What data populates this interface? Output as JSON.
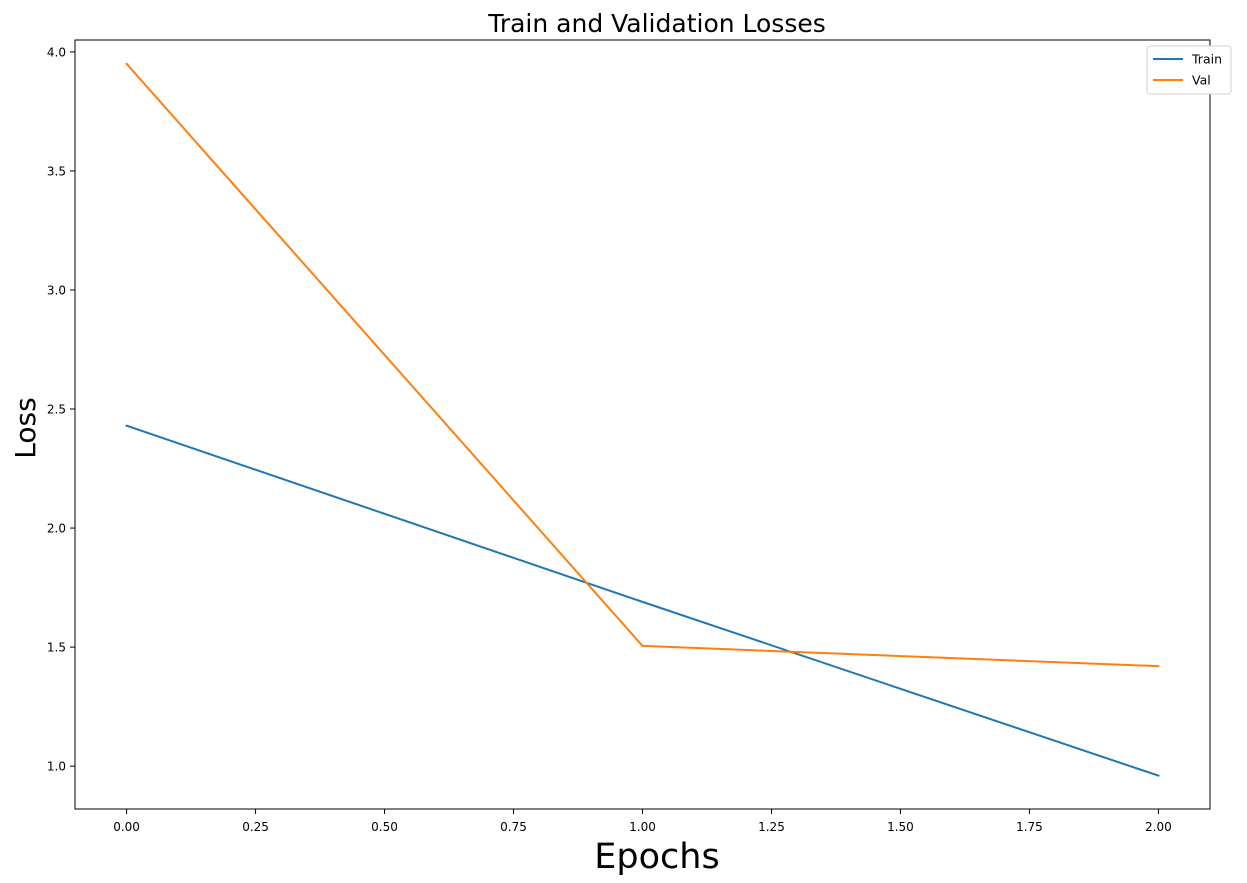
{
  "chart_data": {
    "type": "line",
    "title": "Train and Validation Losses",
    "xlabel": "Epochs",
    "ylabel": "Loss",
    "x": [
      0,
      1,
      2
    ],
    "series": [
      {
        "name": "Train",
        "values": [
          2.43,
          1.69,
          0.96
        ],
        "color": "#1f77b4"
      },
      {
        "name": "Val",
        "values": [
          3.95,
          1.505,
          1.42
        ],
        "color": "#ff7f0e"
      }
    ],
    "xlim": [
      -0.1,
      2.1
    ],
    "ylim": [
      0.82,
      4.05
    ],
    "xticks": [
      0,
      0.25,
      0.5,
      0.75,
      1.0,
      1.25,
      1.5,
      1.75,
      2.0
    ],
    "xtick_labels": [
      "0.00",
      "0.25",
      "0.50",
      "0.75",
      "1.00",
      "1.25",
      "1.50",
      "1.75",
      "2.00"
    ],
    "yticks": [
      1.0,
      1.5,
      2.0,
      2.5,
      3.0,
      3.5,
      4.0
    ],
    "ytick_labels": [
      "1.0",
      "1.5",
      "2.0",
      "2.5",
      "3.0",
      "3.5",
      "4.0"
    ],
    "grid": false,
    "legend_position": "top-right"
  }
}
